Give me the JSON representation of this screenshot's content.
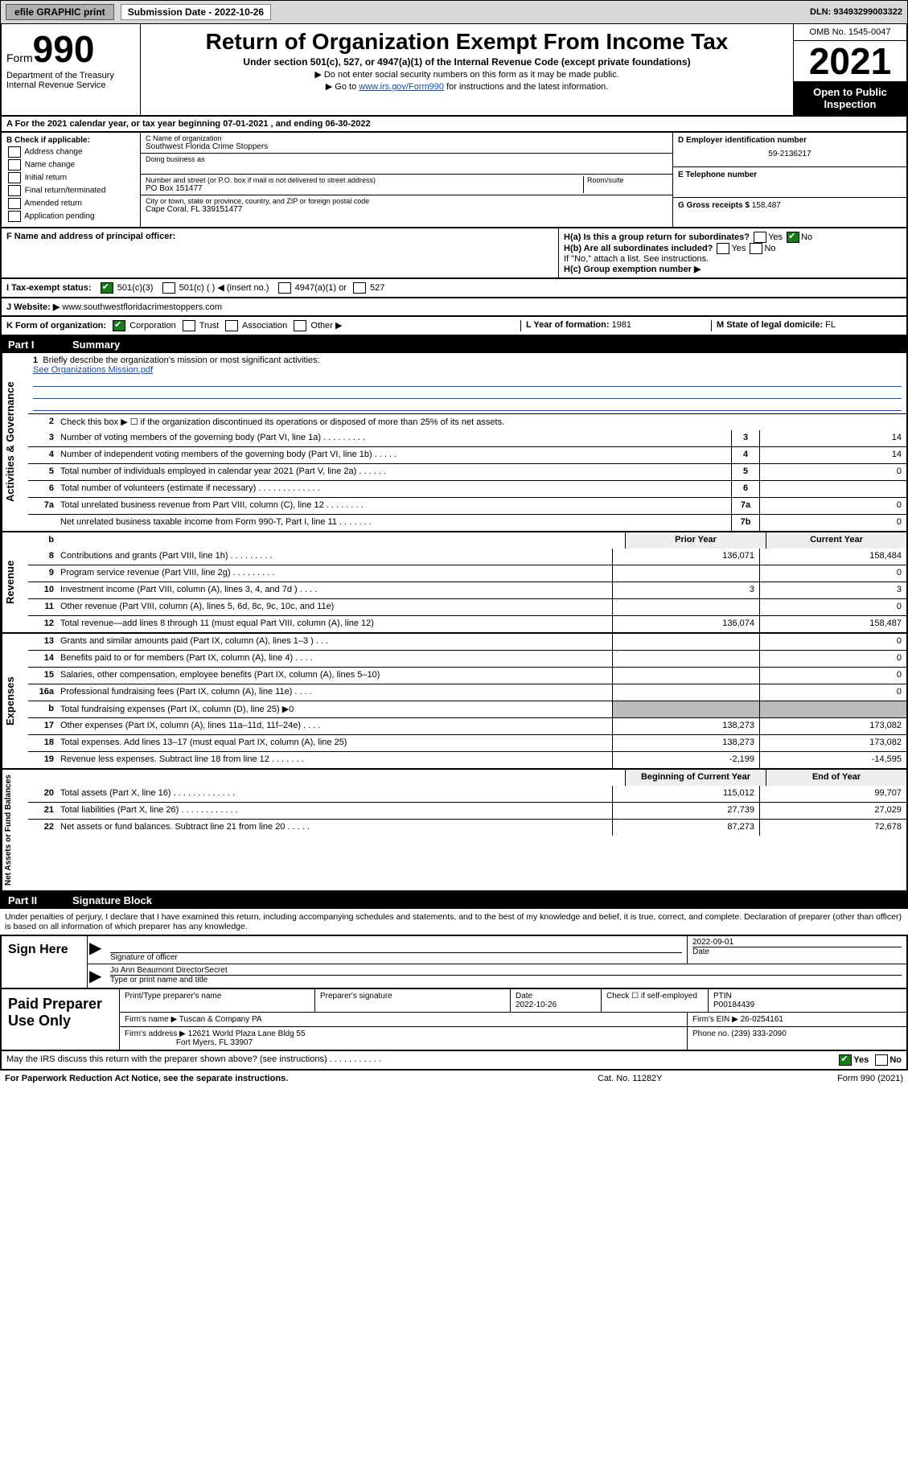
{
  "topbar": {
    "efile": "efile GRAPHIC print",
    "subdate_lbl": "Submission Date - 2022-10-26",
    "dln": "DLN: 93493299003322"
  },
  "header": {
    "form_word": "Form",
    "form_num": "990",
    "dept": "Department of the Treasury",
    "irs": "Internal Revenue Service",
    "title": "Return of Organization Exempt From Income Tax",
    "sub": "Under section 501(c), 527, or 4947(a)(1) of the Internal Revenue Code (except private foundations)",
    "note1": "▶ Do not enter social security numbers on this form as it may be made public.",
    "note2_a": "▶ Go to ",
    "note2_link": "www.irs.gov/Form990",
    "note2_b": " for instructions and the latest information.",
    "omb": "OMB No. 1545-0047",
    "year": "2021",
    "open": "Open to Public Inspection"
  },
  "row_a": "A For the 2021 calendar year, or tax year beginning 07-01-2021   , and ending 06-30-2022",
  "col_b": {
    "title": "B Check if applicable:",
    "items": [
      "Address change",
      "Name change",
      "Initial return",
      "Final return/terminated",
      "Amended return",
      "Application pending"
    ]
  },
  "col_c": {
    "name_lbl": "C Name of organization",
    "name": "Southwest Florida Crime Stoppers",
    "dba_lbl": "Doing business as",
    "addr_lbl": "Number and street (or P.O. box if mail is not delivered to street address)",
    "room_lbl": "Room/suite",
    "addr": "PO Box 151477",
    "city_lbl": "City or town, state or province, country, and ZIP or foreign postal code",
    "city": "Cape Coral, FL  339151477"
  },
  "col_d": {
    "ein_lbl": "D Employer identification number",
    "ein": "59-2136217",
    "tel_lbl": "E Telephone number",
    "gross_lbl": "G Gross receipts $",
    "gross": "158,487"
  },
  "row_f": {
    "f_lbl": "F Name and address of principal officer:",
    "ha": "H(a)  Is this a group return for subordinates?",
    "hb": "H(b)  Are all subordinates included?",
    "hb_note": "If \"No,\" attach a list. See instructions.",
    "hc": "H(c)  Group exemption number ▶",
    "yes": "Yes",
    "no": "No"
  },
  "row_i": {
    "lbl": "I   Tax-exempt status:",
    "o1": "501(c)(3)",
    "o2": "501(c) (  ) ◀ (insert no.)",
    "o3": "4947(a)(1) or",
    "o4": "527"
  },
  "row_j": {
    "lbl": "J   Website: ▶",
    "val": "www.southwestfloridacrimestoppers.com"
  },
  "row_k": {
    "lbl": "K Form of organization:",
    "o1": "Corporation",
    "o2": "Trust",
    "o3": "Association",
    "o4": "Other ▶",
    "l_lbl": "L Year of formation:",
    "l_val": "1981",
    "m_lbl": "M State of legal domicile:",
    "m_val": "FL"
  },
  "part1": {
    "hdr": "Summary",
    "q1": "Briefly describe the organization's mission or most significant activities:",
    "q1_link": "See Organizations Mission.pdf",
    "q2": "Check this box ▶ ☐  if the organization discontinued its operations or disposed of more than 25% of its net assets.",
    "rows_gov": [
      {
        "n": "3",
        "t": "Number of voting members of the governing body (Part VI, line 1a)  .   .   .   .   .   .   .   .   .",
        "b": "3",
        "v": "14"
      },
      {
        "n": "4",
        "t": "Number of independent voting members of the governing body (Part VI, line 1b)   .   .   .   .   .",
        "b": "4",
        "v": "14"
      },
      {
        "n": "5",
        "t": "Total number of individuals employed in calendar year 2021 (Part V, line 2a)   .   .   .   .   .   .",
        "b": "5",
        "v": "0"
      },
      {
        "n": "6",
        "t": "Total number of volunteers (estimate if necessary)   .   .   .   .   .   .   .   .   .   .   .   .   .",
        "b": "6",
        "v": ""
      },
      {
        "n": "7a",
        "t": "Total unrelated business revenue from Part VIII, column (C), line 12   .   .   .   .   .   .   .   .",
        "b": "7a",
        "v": "0"
      },
      {
        "n": "",
        "t": "Net unrelated business taxable income from Form 990-T, Part I, line 11   .   .   .   .   .   .   .",
        "b": "7b",
        "v": "0"
      }
    ],
    "col_prior": "Prior Year",
    "col_curr": "Current Year",
    "rows_rev": [
      {
        "n": "8",
        "t": "Contributions and grants (Part VIII, line 1h)   .   .   .   .   .   .   .   .   .",
        "p": "136,071",
        "c": "158,484"
      },
      {
        "n": "9",
        "t": "Program service revenue (Part VIII, line 2g)   .   .   .   .   .   .   .   .   .",
        "p": "",
        "c": "0"
      },
      {
        "n": "10",
        "t": "Investment income (Part VIII, column (A), lines 3, 4, and 7d )   .   .   .   .",
        "p": "3",
        "c": "3"
      },
      {
        "n": "11",
        "t": "Other revenue (Part VIII, column (A), lines 5, 6d, 8c, 9c, 10c, and 11e)",
        "p": "",
        "c": "0"
      },
      {
        "n": "12",
        "t": "Total revenue—add lines 8 through 11 (must equal Part VIII, column (A), line 12)",
        "p": "136,074",
        "c": "158,487"
      }
    ],
    "rows_exp": [
      {
        "n": "13",
        "t": "Grants and similar amounts paid (Part IX, column (A), lines 1–3 )   .   .   .",
        "p": "",
        "c": "0"
      },
      {
        "n": "14",
        "t": "Benefits paid to or for members (Part IX, column (A), line 4)   .   .   .   .",
        "p": "",
        "c": "0"
      },
      {
        "n": "15",
        "t": "Salaries, other compensation, employee benefits (Part IX, column (A), lines 5–10)",
        "p": "",
        "c": "0"
      },
      {
        "n": "16a",
        "t": "Professional fundraising fees (Part IX, column (A), line 11e)   .   .   .   .",
        "p": "",
        "c": "0"
      },
      {
        "n": "b",
        "t": "Total fundraising expenses (Part IX, column (D), line 25) ▶0",
        "p": "grey",
        "c": "grey"
      },
      {
        "n": "17",
        "t": "Other expenses (Part IX, column (A), lines 11a–11d, 11f–24e)   .   .   .   .",
        "p": "138,273",
        "c": "173,082"
      },
      {
        "n": "18",
        "t": "Total expenses. Add lines 13–17 (must equal Part IX, column (A), line 25)",
        "p": "138,273",
        "c": "173,082"
      },
      {
        "n": "19",
        "t": "Revenue less expenses. Subtract line 18 from line 12   .   .   .   .   .   .   .",
        "p": "-2,199",
        "c": "-14,595"
      }
    ],
    "col_beg": "Beginning of Current Year",
    "col_end": "End of Year",
    "rows_net": [
      {
        "n": "20",
        "t": "Total assets (Part X, line 16)   .   .   .   .   .   .   .   .   .   .   .   .   .",
        "p": "115,012",
        "c": "99,707"
      },
      {
        "n": "21",
        "t": "Total liabilities (Part X, line 26)   .   .   .   .   .   .   .   .   .   .   .   .",
        "p": "27,739",
        "c": "27,029"
      },
      {
        "n": "22",
        "t": "Net assets or fund balances. Subtract line 21 from line 20   .   .   .   .   .",
        "p": "87,273",
        "c": "72,678"
      }
    ]
  },
  "vtabs": {
    "gov": "Activities & Governance",
    "rev": "Revenue",
    "exp": "Expenses",
    "net": "Net Assets or Fund Balances"
  },
  "part2": {
    "hdr": "Signature Block",
    "intro": "Under penalties of perjury, I declare that I have examined this return, including accompanying schedules and statements, and to the best of my knowledge and belief, it is true, correct, and complete. Declaration of preparer (other than officer) is based on all information of which preparer has any knowledge.",
    "sign_here": "Sign Here",
    "sig_of_officer": "Signature of officer",
    "sig_date": "2022-09-01",
    "date_lbl": "Date",
    "officer_name": "Jo Ann Beaumont DirectorSecret",
    "officer_name_lbl": "Type or print name and title"
  },
  "prep": {
    "title": "Paid Preparer Use Only",
    "c1": "Print/Type preparer's name",
    "c2": "Preparer's signature",
    "c3": "Date",
    "c3v": "2022-10-26",
    "c4": "Check ☐ if self-employed",
    "c5": "PTIN",
    "c5v": "P00184439",
    "firm_lbl": "Firm's name    ▶",
    "firm": "Tuscan & Company PA",
    "ein_lbl": "Firm's EIN ▶",
    "ein": "26-0254161",
    "addr_lbl": "Firm's address ▶",
    "addr1": "12621 World Plaza Lane Bldg 55",
    "addr2": "Fort Myers, FL  33907",
    "phone_lbl": "Phone no.",
    "phone": "(239) 333-2090"
  },
  "discuss": "May the IRS discuss this return with the preparer shown above? (see instructions)   .   .   .   .   .   .   .   .   .   .   .",
  "footer": {
    "l": "For Paperwork Reduction Act Notice, see the separate instructions.",
    "m": "Cat. No. 11282Y",
    "r": "Form 990 (2021)"
  }
}
